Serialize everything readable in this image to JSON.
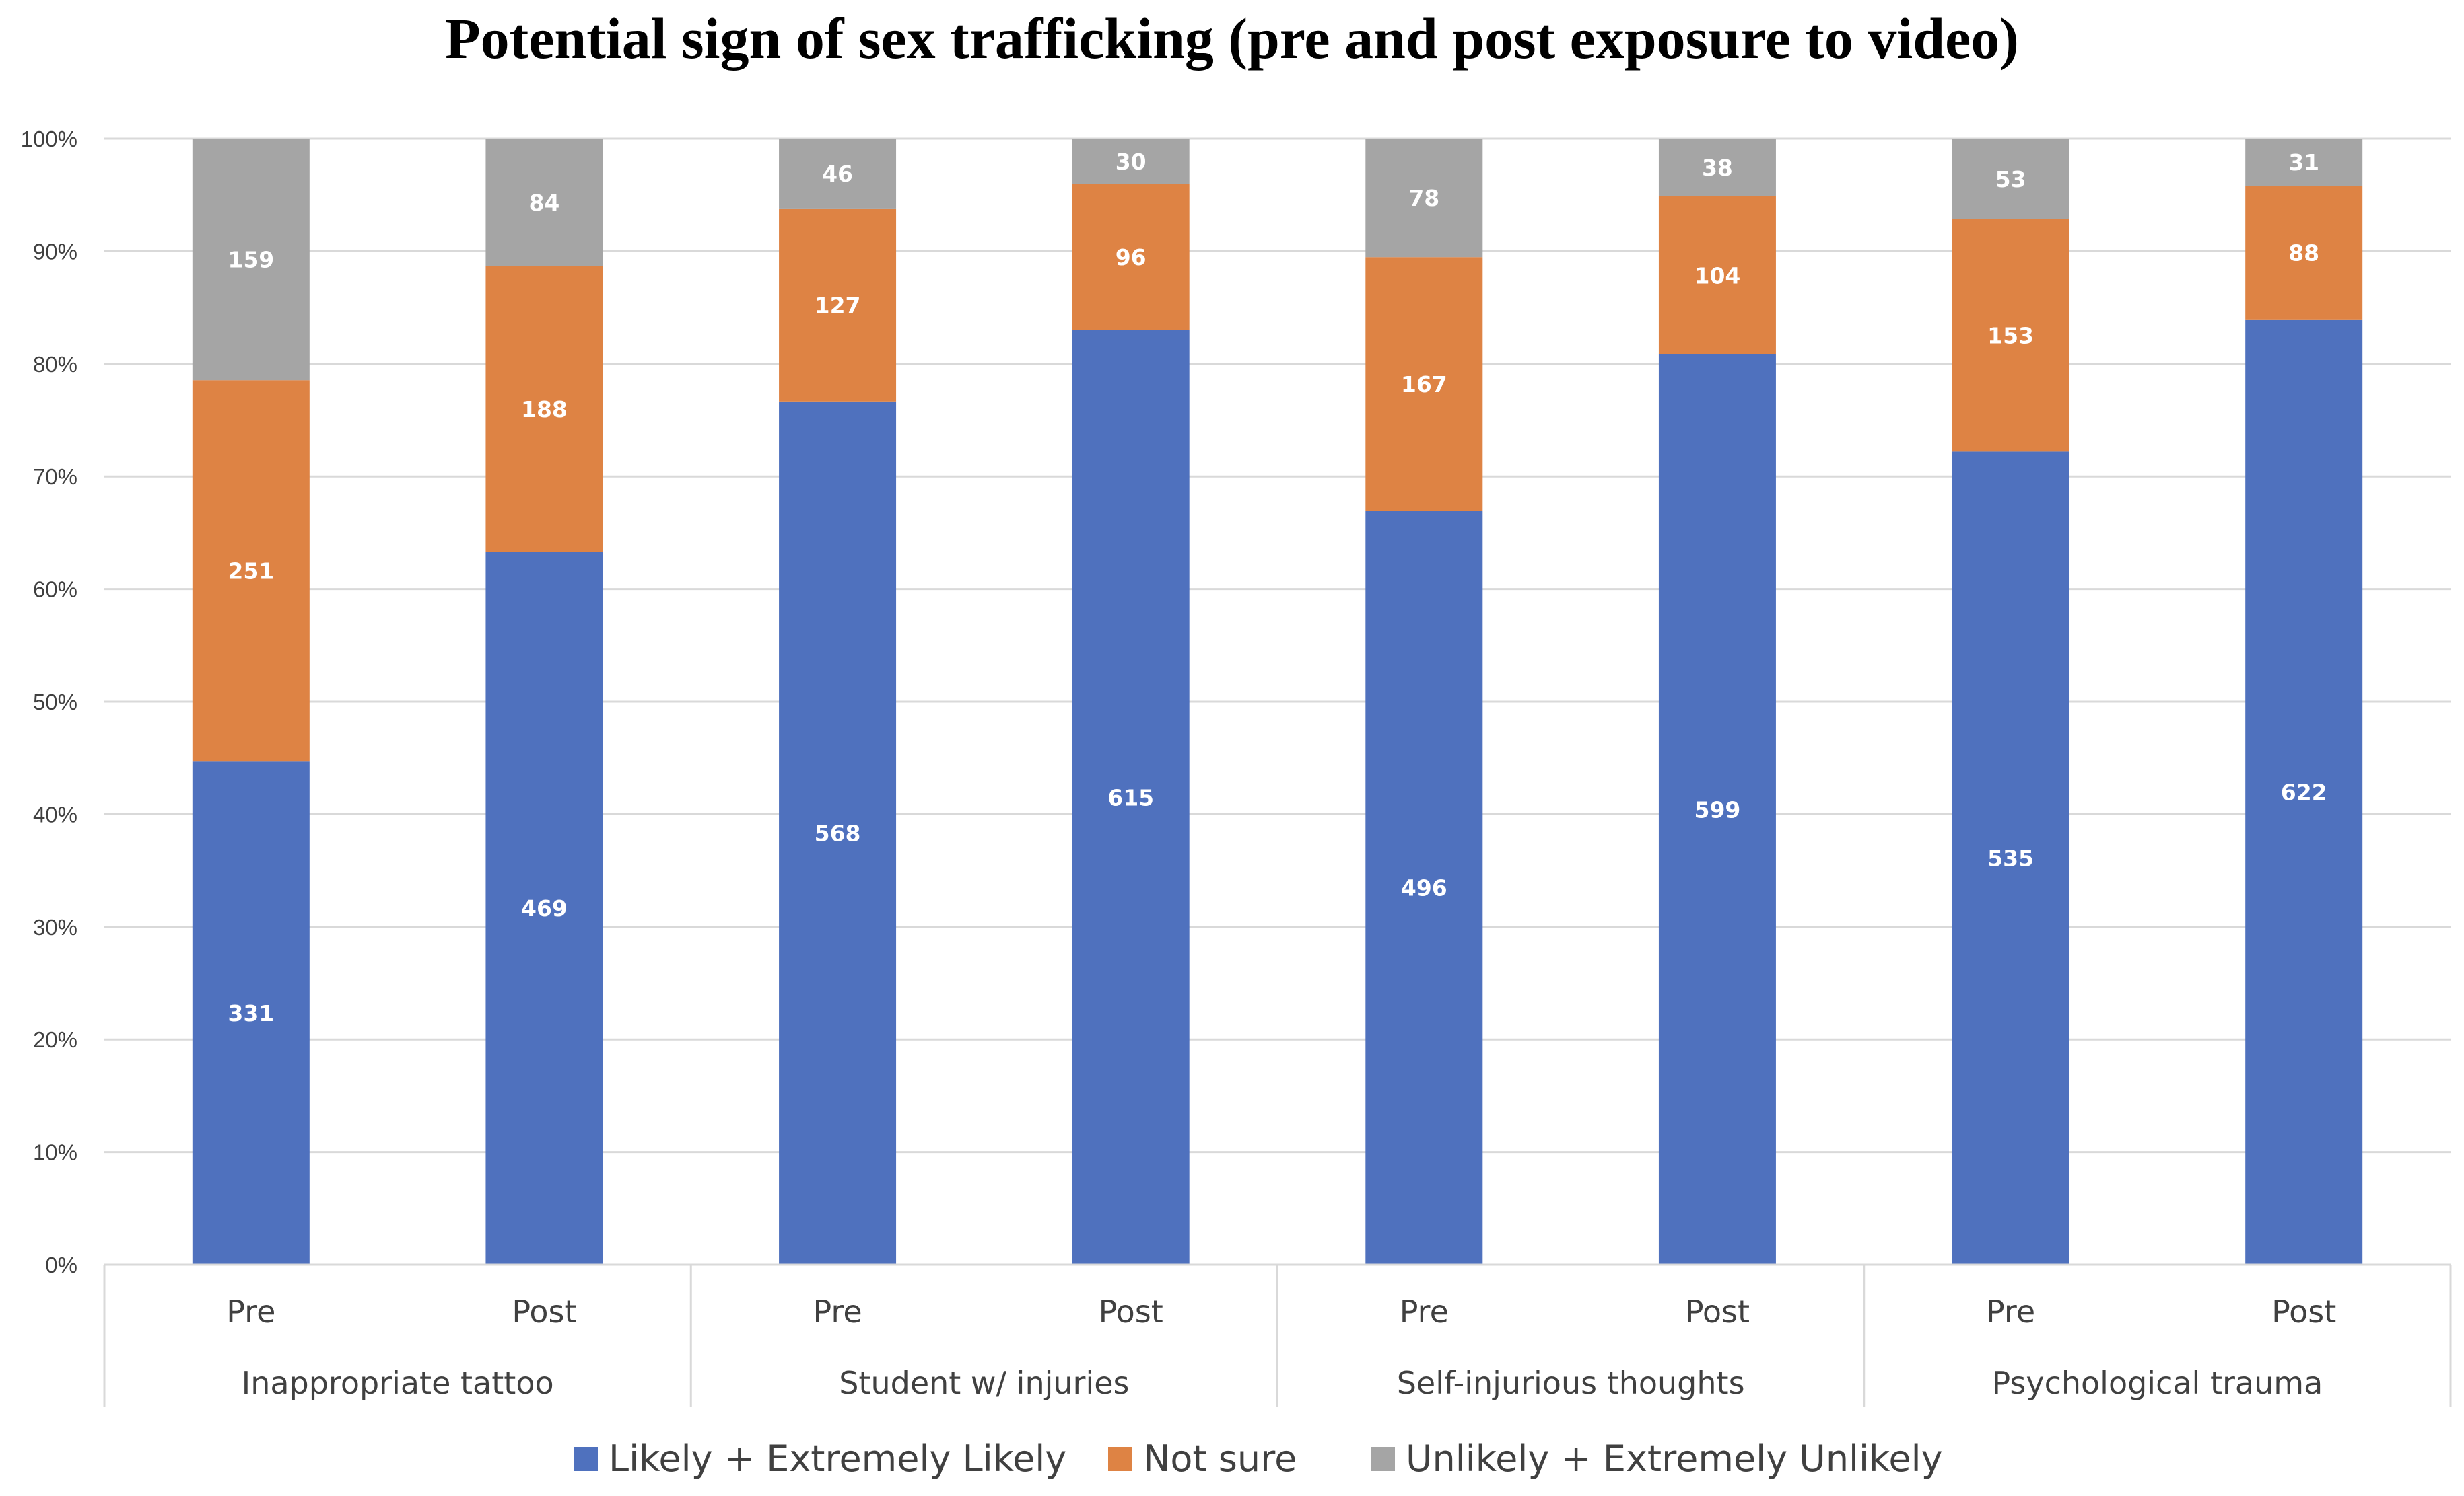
{
  "chart_data": {
    "type": "bar",
    "stacked": true,
    "normalized": true,
    "title": "Potential sign of sex trafficking (pre and post exposure to video)",
    "xlabel": "",
    "ylabel": "",
    "ylim": [
      0,
      100
    ],
    "yticks": [
      "0%",
      "10%",
      "20%",
      "30%",
      "40%",
      "50%",
      "60%",
      "70%",
      "80%",
      "90%",
      "100%"
    ],
    "groups": [
      {
        "name": "Inappropriate tattoo",
        "categories": [
          "Pre",
          "Post"
        ]
      },
      {
        "name": "Student w/ injuries",
        "categories": [
          "Pre",
          "Post"
        ]
      },
      {
        "name": "Self-injurious thoughts",
        "categories": [
          "Pre",
          "Post"
        ]
      },
      {
        "name": "Psychological trauma",
        "categories": [
          "Pre",
          "Post"
        ]
      }
    ],
    "categories": [
      "Pre",
      "Post",
      "Pre",
      "Post",
      "Pre",
      "Post",
      "Pre",
      "Post"
    ],
    "series": [
      {
        "name": "Likely + Extremely Likely",
        "color": "#4F71BE",
        "values": [
          331,
          469,
          568,
          615,
          496,
          599,
          535,
          622
        ]
      },
      {
        "name": "Not sure",
        "color": "#DE8344",
        "values": [
          251,
          188,
          127,
          96,
          167,
          104,
          153,
          88
        ]
      },
      {
        "name": "Unlikely + Extremely Unlikely",
        "color": "#A5A5A5",
        "values": [
          159,
          84,
          46,
          30,
          78,
          38,
          53,
          31
        ]
      }
    ],
    "legend_position": "bottom",
    "grid": true
  }
}
